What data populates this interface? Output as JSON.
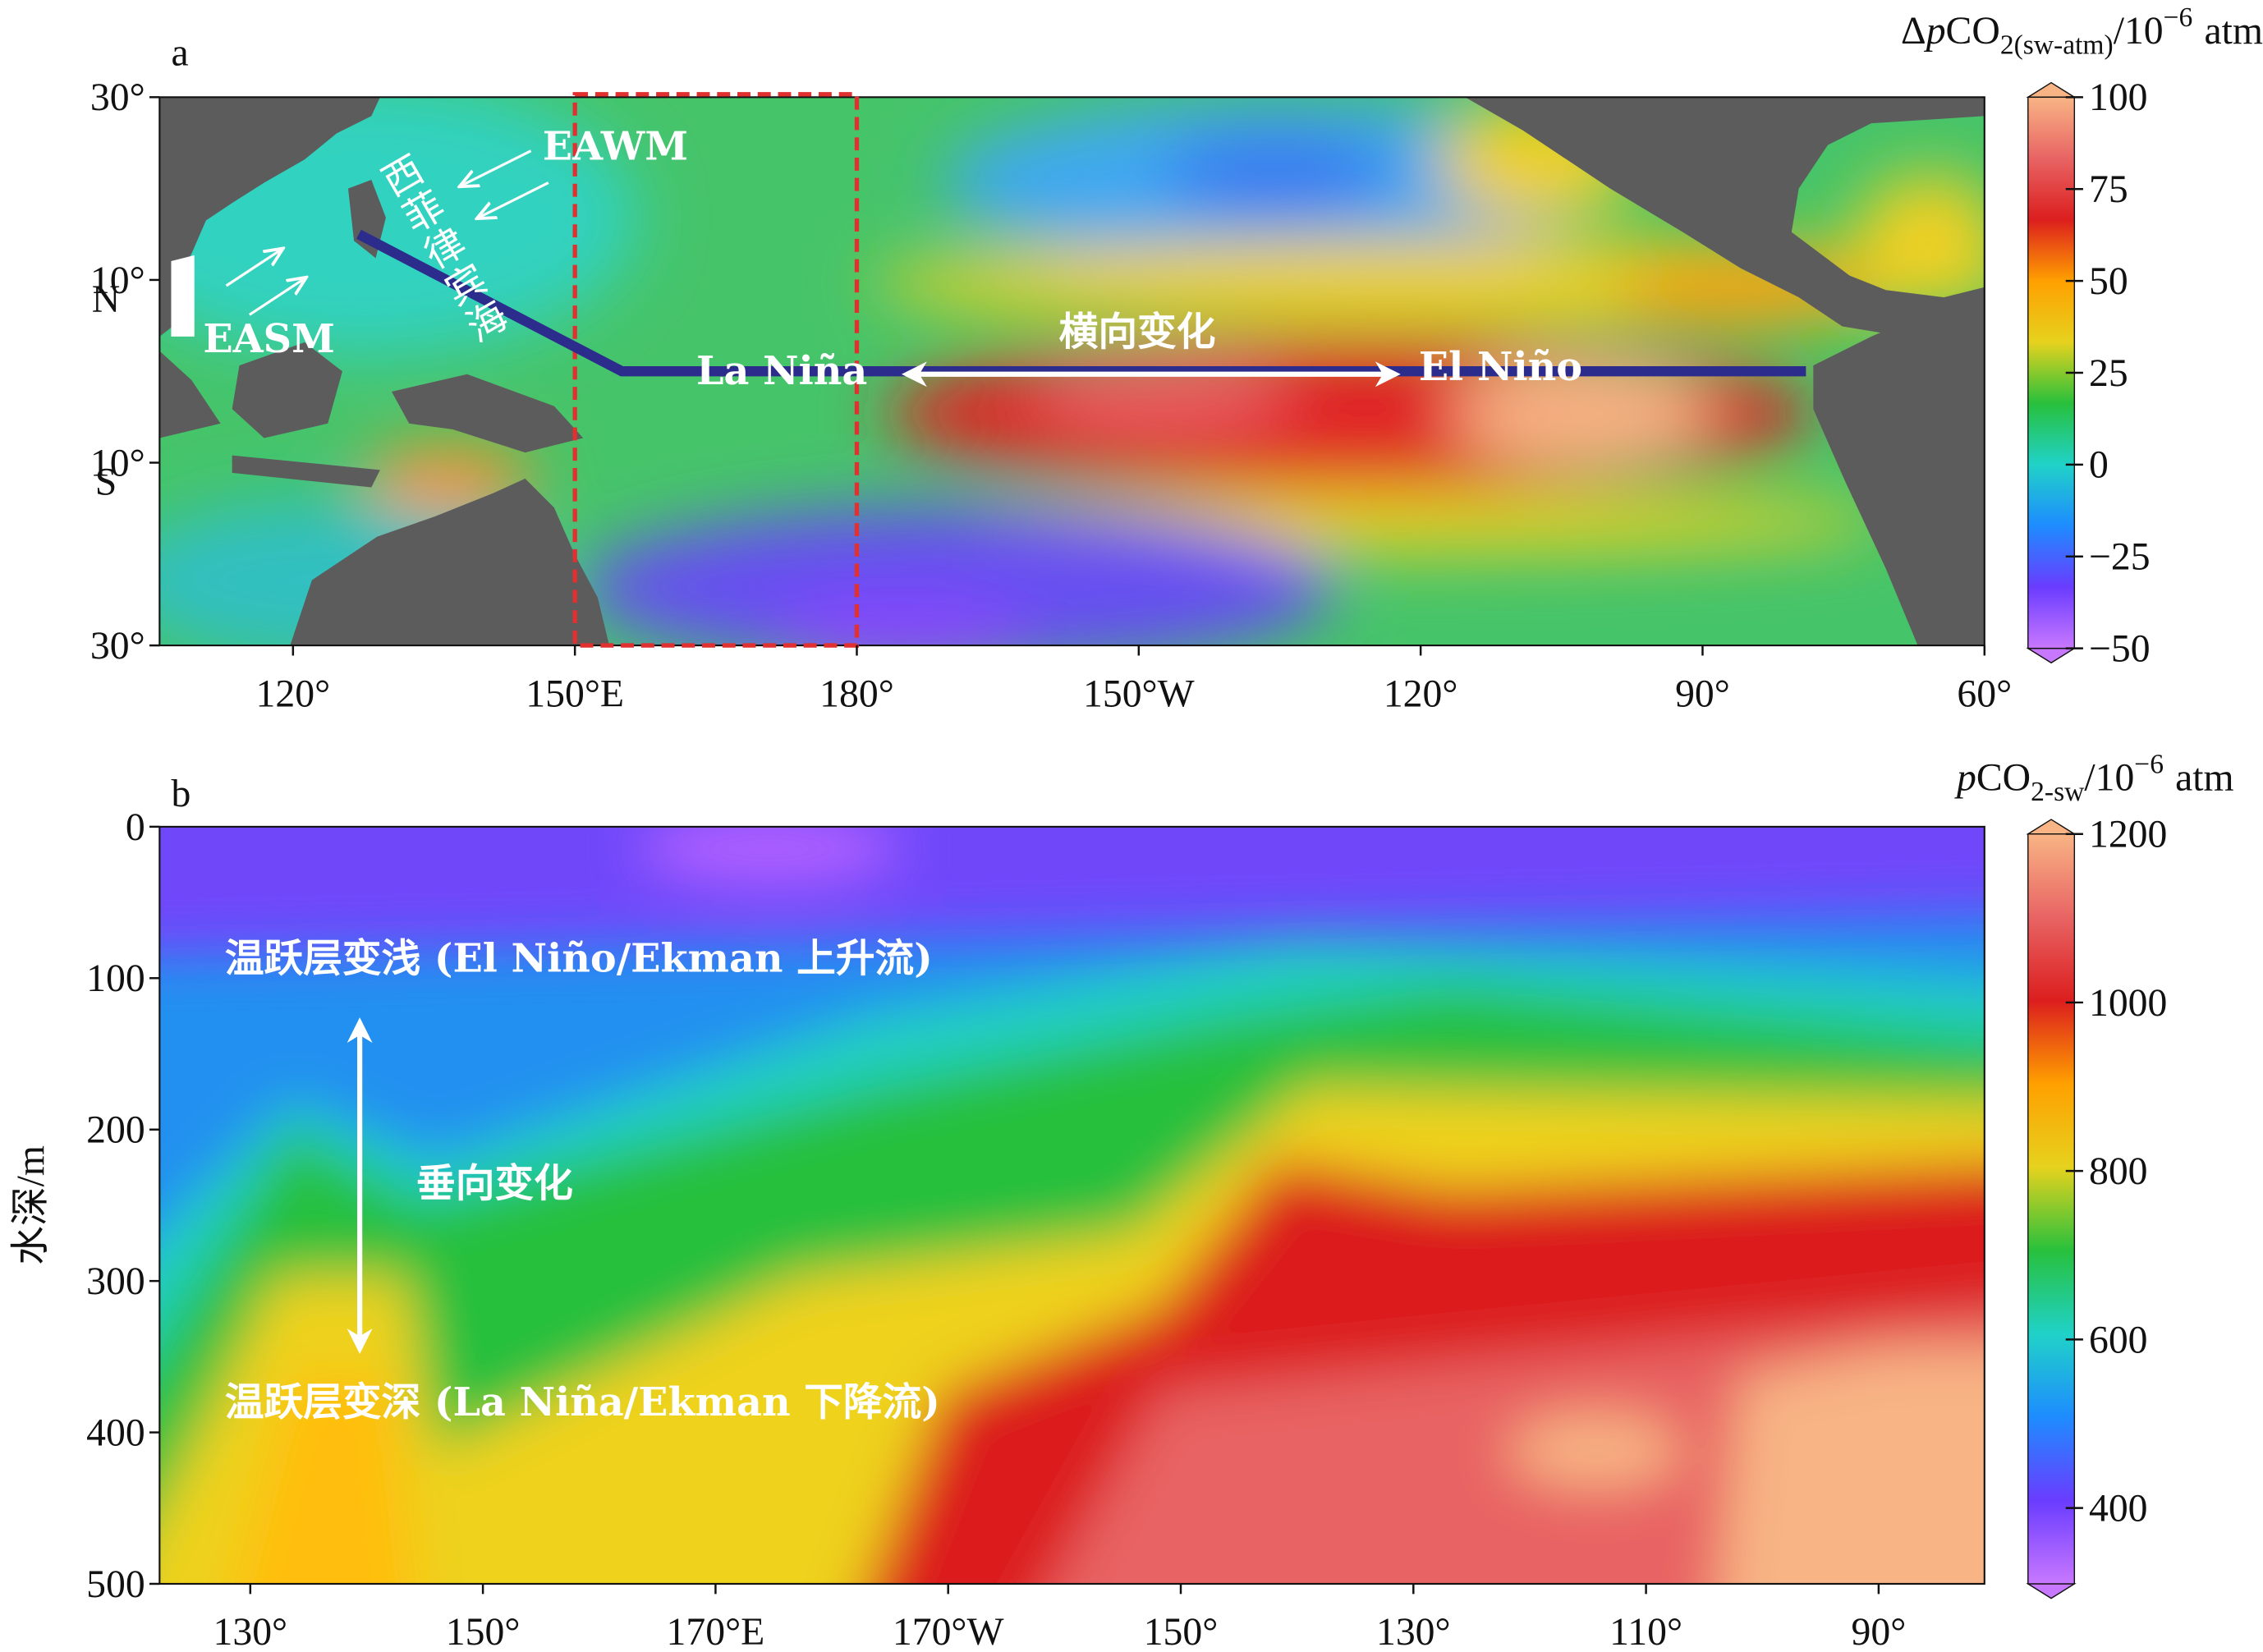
{
  "chart_data": [
    {
      "type": "map",
      "panel_label": "a",
      "xlim": [
        105.8,
        300
      ],
      "ylim": [
        -30,
        30
      ],
      "xticks": [
        {
          "value": 120,
          "label": "120°"
        },
        {
          "value": 150,
          "label": "150°E"
        },
        {
          "value": 180,
          "label": "180°"
        },
        {
          "value": 210,
          "label": "150°W"
        },
        {
          "value": 240,
          "label": "120°"
        },
        {
          "value": 270,
          "label": "90°"
        },
        {
          "value": 300,
          "label": "60°"
        }
      ],
      "yticks": [
        {
          "value": 30,
          "label": "30°"
        },
        {
          "value": 10,
          "label": "10°",
          "hemisphere": "N"
        },
        {
          "value": -10,
          "label": "10°",
          "hemisphere": "S"
        },
        {
          "value": -30,
          "label": "30°"
        }
      ],
      "box": {
        "xlim": [
          150,
          180
        ],
        "color": "#e03030"
      },
      "track": {
        "x": [
          127,
          155,
          281
        ],
        "y": [
          15,
          0,
          0
        ],
        "color": "#2c2c8c"
      },
      "annotations": [
        "EAWM",
        "EASM",
        "西菲律宾海",
        "La Niña",
        "El Niño",
        "横向变化"
      ],
      "colorbar": {
        "title": [
          "Δ",
          "p",
          "CO",
          "2(sw-atm)",
          "/10",
          "−6",
          "atm"
        ],
        "ylim": [
          -50,
          100
        ],
        "yticks": [
          {
            "value": -50,
            "label": "−50"
          },
          {
            "value": -25,
            "label": "−25"
          },
          0,
          25,
          50,
          75,
          100
        ],
        "colormap": [
          "#c878ff",
          "#6a3cff",
          "#1e8cff",
          "#20d2c8",
          "#28c03c",
          "#e6d21e",
          "#ffa000",
          "#dc1e1e",
          "#e86464",
          "#f8b484"
        ]
      }
    },
    {
      "type": "section",
      "panel_label": "b",
      "ylabel": "水深/m",
      "xlim": [
        122.2,
        279.1
      ],
      "ylim": [
        500,
        0
      ],
      "xticks": [
        {
          "value": 130,
          "label": "130°"
        },
        {
          "value": 150,
          "label": "150°"
        },
        {
          "value": 170,
          "label": "170°E"
        },
        {
          "value": 190,
          "label": "170°W"
        },
        {
          "value": 210,
          "label": "150°"
        },
        {
          "value": 230,
          "label": "130°"
        },
        {
          "value": 250,
          "label": "110°"
        },
        {
          "value": 270,
          "label": "90°"
        }
      ],
      "yticks": [
        0,
        100,
        200,
        300,
        400,
        500
      ],
      "annotations": [
        "温跃层变浅 (El Niño/Ekman 上升流)",
        "垂向变化",
        "温跃层变深 (La Niña/Ekman 下降流)"
      ],
      "colorbar": {
        "title": [
          "p",
          "CO",
          "2-sw",
          "/10",
          "−6",
          "atm"
        ],
        "ylim": [
          310,
          1200
        ],
        "yticks": [
          400,
          600,
          800,
          1000,
          1200
        ],
        "colormap": [
          "#c878ff",
          "#6a3cff",
          "#1e8cff",
          "#20d2c8",
          "#28c03c",
          "#e6d21e",
          "#ffa000",
          "#dc1e1e",
          "#e86464",
          "#f8b484"
        ]
      }
    }
  ]
}
